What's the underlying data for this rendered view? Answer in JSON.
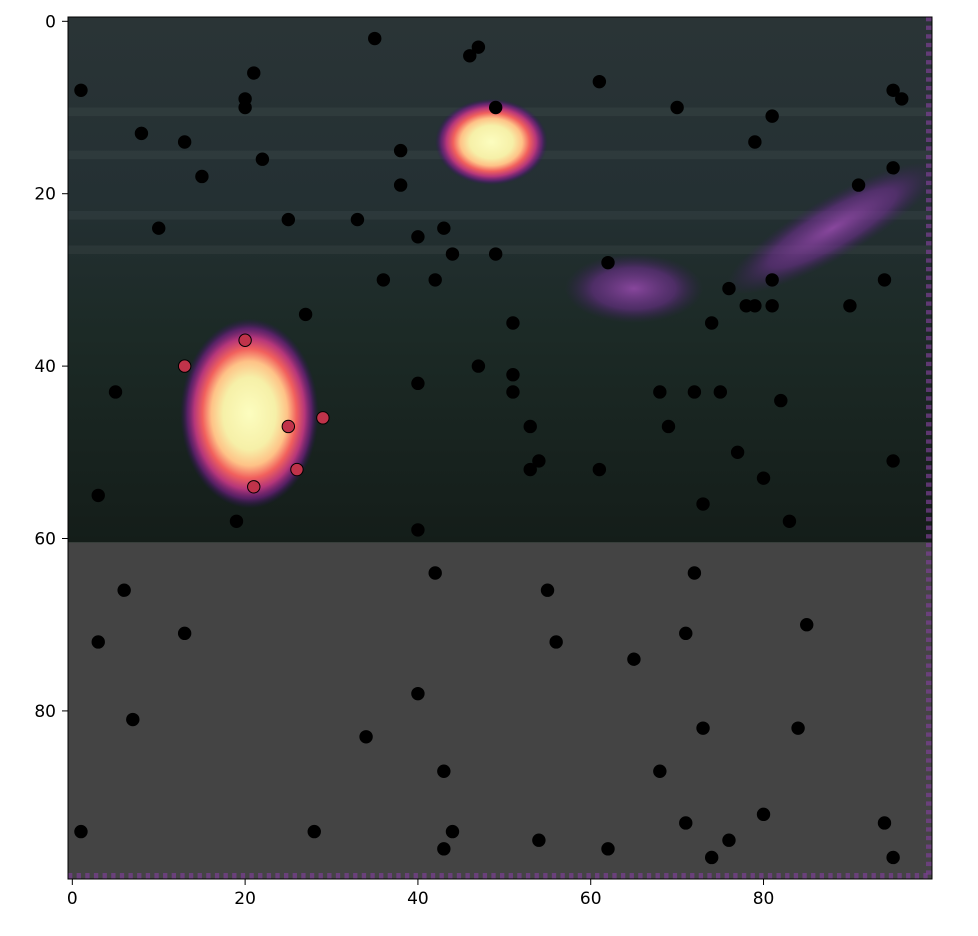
{
  "chart_data": {
    "type": "scatter",
    "title": "",
    "xlabel": "",
    "ylabel": "",
    "xlim": [
      -0.5,
      99.5
    ],
    "ylim": [
      99.5,
      -0.5
    ],
    "y_axis_inverted": true,
    "grid": false,
    "legend": "none",
    "xticks": [
      0,
      20,
      40,
      60,
      80
    ],
    "yticks": [
      0,
      20,
      40,
      60,
      80
    ],
    "background_image": {
      "description_kind": "heatmap overlaid on photo",
      "top_region_rows": [
        0,
        60
      ],
      "bottom_fill_color": "#444444",
      "hotspots": [
        {
          "center": [
            20.5,
            45.5
          ],
          "radius_x": 8,
          "radius_y": 11,
          "intensity": 1.0
        },
        {
          "center": [
            48.5,
            14
          ],
          "radius_x": 6.5,
          "radius_y": 5,
          "intensity": 0.95
        },
        {
          "center": [
            88,
            24
          ],
          "radius_x": 14,
          "radius_y": 3.5,
          "intensity": 0.35,
          "rotation_deg": -30
        },
        {
          "center": [
            65,
            31
          ],
          "radius_x": 8,
          "radius_y": 4,
          "intensity": 0.3
        }
      ]
    },
    "series": [
      {
        "marker_color": "#000000",
        "points": [
          [
            35,
            2
          ],
          [
            47,
            3
          ],
          [
            46,
            4
          ],
          [
            21,
            6
          ],
          [
            61,
            7
          ],
          [
            1,
            8
          ],
          [
            95,
            8
          ],
          [
            96,
            9
          ],
          [
            20,
            9
          ],
          [
            20,
            10
          ],
          [
            49,
            10
          ],
          [
            70,
            10
          ],
          [
            81,
            11
          ],
          [
            8,
            13
          ],
          [
            13,
            14
          ],
          [
            79,
            14
          ],
          [
            38,
            15
          ],
          [
            22,
            16
          ],
          [
            95,
            17
          ],
          [
            15,
            18
          ],
          [
            38,
            19
          ],
          [
            91,
            19
          ],
          [
            25,
            23
          ],
          [
            33,
            23
          ],
          [
            10,
            24
          ],
          [
            43,
            24
          ],
          [
            40,
            25
          ],
          [
            44,
            27
          ],
          [
            49,
            27
          ],
          [
            62,
            28
          ],
          [
            36,
            30
          ],
          [
            42,
            30
          ],
          [
            81,
            30
          ],
          [
            94,
            30
          ],
          [
            76,
            31
          ],
          [
            78,
            33
          ],
          [
            79,
            33
          ],
          [
            81,
            33
          ],
          [
            90,
            33
          ],
          [
            27,
            34
          ],
          [
            51,
            35
          ],
          [
            74,
            35
          ],
          [
            47,
            40
          ],
          [
            51,
            41
          ],
          [
            40,
            42
          ],
          [
            5,
            43
          ],
          [
            51,
            43
          ],
          [
            68,
            43
          ],
          [
            72,
            43
          ],
          [
            75,
            43
          ],
          [
            82,
            44
          ],
          [
            53,
            47
          ],
          [
            69,
            47
          ],
          [
            77,
            50
          ],
          [
            54,
            51
          ],
          [
            95,
            51
          ],
          [
            53,
            52
          ],
          [
            61,
            52
          ],
          [
            80,
            53
          ],
          [
            3,
            55
          ],
          [
            73,
            56
          ],
          [
            19,
            58
          ],
          [
            83,
            58
          ],
          [
            40,
            59
          ],
          [
            42,
            64
          ],
          [
            72,
            64
          ],
          [
            6,
            66
          ],
          [
            55,
            66
          ],
          [
            85,
            70
          ],
          [
            13,
            71
          ],
          [
            71,
            71
          ],
          [
            3,
            72
          ],
          [
            56,
            72
          ],
          [
            65,
            74
          ],
          [
            40,
            78
          ],
          [
            7,
            81
          ],
          [
            73,
            82
          ],
          [
            84,
            82
          ],
          [
            34,
            83
          ],
          [
            43,
            87
          ],
          [
            68,
            87
          ],
          [
            80,
            92
          ],
          [
            71,
            93
          ],
          [
            94,
            93
          ],
          [
            1,
            94
          ],
          [
            28,
            94
          ],
          [
            44,
            94
          ],
          [
            54,
            95
          ],
          [
            76,
            95
          ],
          [
            43,
            96
          ],
          [
            62,
            96
          ],
          [
            74,
            97
          ],
          [
            95,
            97
          ]
        ]
      },
      {
        "marker_color": "#c0334a",
        "points": [
          [
            20,
            37
          ],
          [
            13,
            40
          ],
          [
            29,
            46
          ],
          [
            25,
            47
          ],
          [
            26,
            52
          ],
          [
            21,
            54
          ]
        ]
      }
    ]
  }
}
